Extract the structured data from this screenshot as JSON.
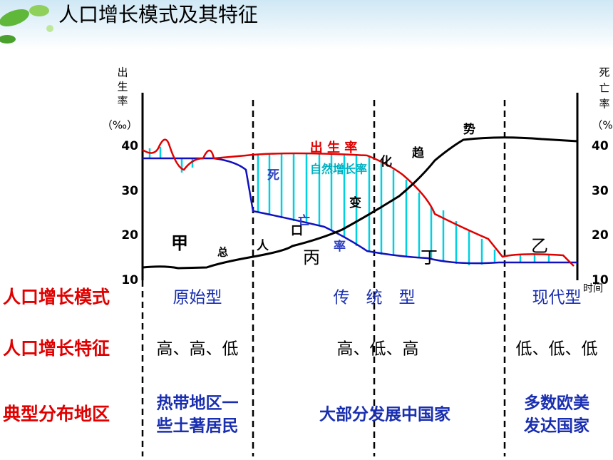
{
  "header": {
    "title": "人口增长模式及其特征"
  },
  "diagram": {
    "left_axis": {
      "label_chars": [
        "出",
        "生",
        "率"
      ],
      "unit": "（‰）",
      "ticks": [
        40,
        30,
        20,
        10
      ]
    },
    "right_axis": {
      "label_chars": [
        "死",
        "亡",
        "率"
      ],
      "unit": "（%",
      "ticks": [
        40,
        30,
        20,
        10
      ]
    },
    "x_axis_label": "时间",
    "birth_rate_label": "出 生 率",
    "natural_growth_label": "自然增长率",
    "death_rate_chars": [
      "死",
      "亡",
      "率"
    ],
    "population_chars": [
      "总",
      "人",
      "口",
      "变",
      "化",
      "趋",
      "势"
    ],
    "stage_marks": [
      "甲",
      "丙",
      "丁",
      "乙"
    ]
  },
  "table": {
    "rows": [
      {
        "label": "人口增长模式",
        "cells": [
          "原始型",
          "传　统　型",
          "现代型"
        ]
      },
      {
        "label": "人口增长特征",
        "cells": [
          "高、高、低",
          "高、低、高",
          "低、低、低"
        ]
      },
      {
        "label": "典型分布地区",
        "cells": [
          [
            "热带地区一",
            "些土著居民"
          ],
          [
            "大部分发展中国家"
          ],
          [
            "多数欧美",
            "发达国家"
          ]
        ]
      }
    ]
  }
}
